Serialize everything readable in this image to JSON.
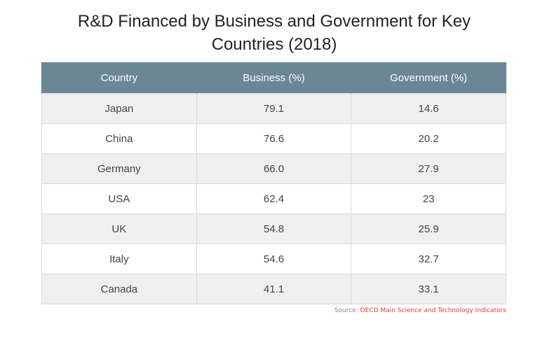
{
  "chart_data": {
    "type": "table",
    "title": "R&D Financed by Business and Government for Key Countries (2018)",
    "columns": [
      "Country",
      "Business (%)",
      "Government (%)"
    ],
    "rows": [
      {
        "country": "Japan",
        "business": "79.1",
        "government": "14.6"
      },
      {
        "country": "China",
        "business": "76.6",
        "government": "20.2"
      },
      {
        "country": "Germany",
        "business": "66.0",
        "government": "27.9"
      },
      {
        "country": "USA",
        "business": "62.4",
        "government": "23"
      },
      {
        "country": "UK",
        "business": "54.8",
        "government": "25.9"
      },
      {
        "country": "Italy",
        "business": "54.6",
        "government": "32.7"
      },
      {
        "country": "Canada",
        "business": "41.1",
        "government": "33.1"
      }
    ],
    "source_label": "Source:",
    "source_name": "OECD Main Science and Technology Indicators"
  },
  "colors": {
    "header_bg": "#6b8694",
    "source_link": "#e03a2f"
  }
}
